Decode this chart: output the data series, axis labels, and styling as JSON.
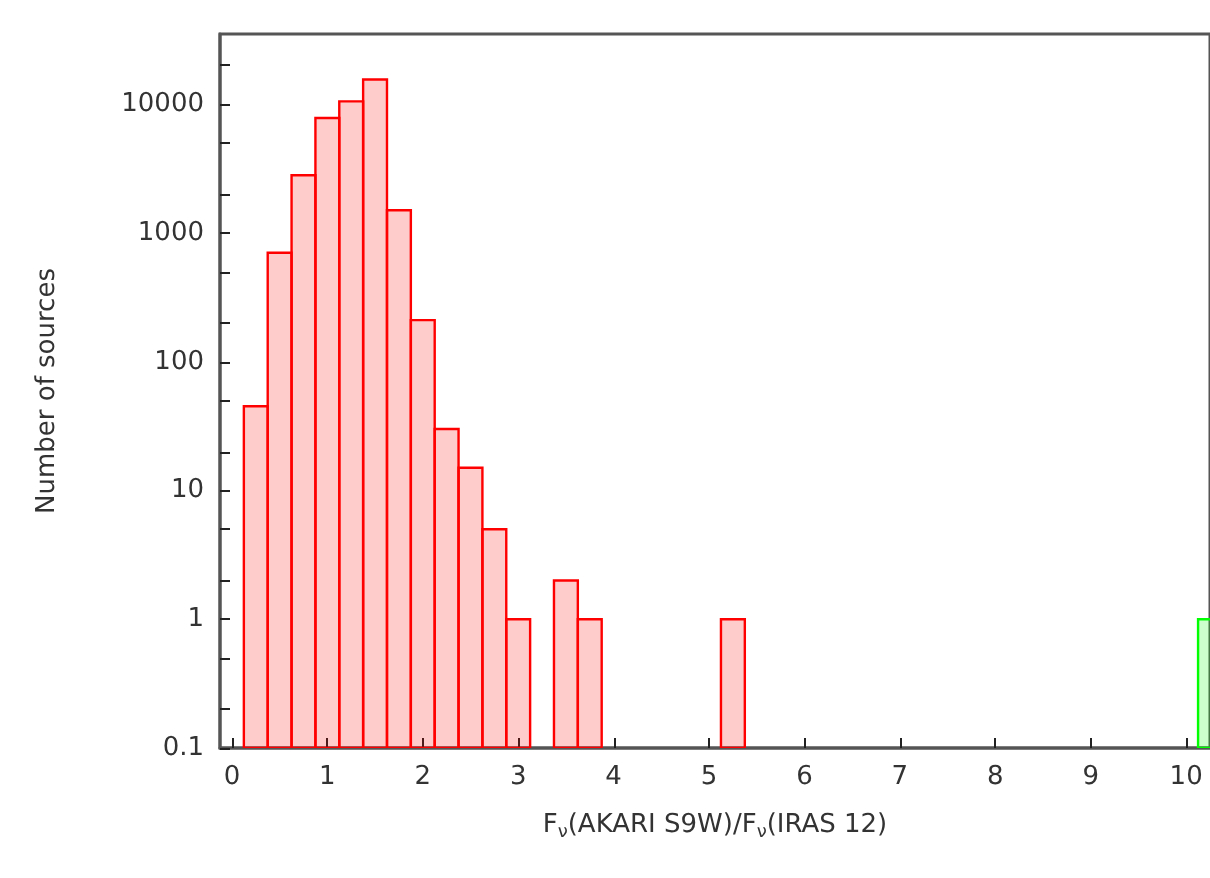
{
  "chart_data": {
    "type": "histogram",
    "xlabel": "F$_{ν}$(AKARI S9W)/F$_{ν}$(IRAS 12)",
    "ylabel": "Number of sources",
    "log": "y",
    "grid": false,
    "bins": [
      0.125,
      0.375,
      0.625,
      0.875,
      1.125,
      1.375,
      1.625,
      1.875,
      2.125,
      2.375,
      2.625,
      2.875,
      3.125,
      3.375,
      3.625,
      3.875,
      4.125,
      4.375,
      4.625,
      4.875,
      5.125,
      5.375,
      5.625,
      5.875,
      6.125,
      6.375,
      6.625,
      6.875,
      7.125,
      7.375,
      7.625,
      7.875,
      8.125,
      8.375,
      8.625,
      8.875,
      9.125,
      9.375,
      9.625,
      9.875,
      10.125,
      10.375
    ],
    "values": [
      45,
      700,
      2800,
      7800,
      10500,
      15500,
      1500,
      210,
      30,
      15,
      5,
      1,
      null,
      2,
      1,
      null,
      null,
      null,
      null,
      null,
      1,
      null,
      null,
      null,
      null,
      null,
      null,
      null,
      null,
      null,
      null,
      null,
      null,
      null,
      null,
      null,
      null,
      null,
      null,
      null,
      1
    ],
    "colors": [
      "#ff0000",
      "#ff0000",
      "#ff0000",
      "#ff0000",
      "#ff0000",
      "#ff0000",
      "#ff0000",
      "#ff0000",
      "#ff0000",
      "#ff0000",
      "#ff0000",
      "#ff0000",
      "#ff0000",
      "#ff0000",
      "#ff0000",
      "#ff0000",
      "#ff0000",
      "#ff0000",
      "#ff0000",
      "#ff0000",
      "#ff0000",
      "#ff0000",
      "#ff0000",
      "#ff0000",
      "#ff0000",
      "#ff0000",
      "#ff0000",
      "#ff0000",
      "#ff0000",
      "#ff0000",
      "#ff0000",
      "#ff0000",
      "#ff0000",
      "#ff0000",
      "#ff0000",
      "#ff0000",
      "#ff0000",
      "#ff0000",
      "#ff0000",
      "#ff0000",
      "#00ff00"
    ],
    "xlim": [
      -0.125,
      10.25
    ],
    "xticks": [
      0,
      1,
      2,
      3,
      4,
      5,
      6,
      7,
      8,
      9,
      10
    ],
    "ylim": [
      0.1,
      35000
    ],
    "yticks": [
      0.1,
      {
        "value": 0.2,
        "label": null
      },
      {
        "value": 0.5,
        "label": null
      },
      1,
      {
        "value": 2,
        "label": null
      },
      {
        "value": 5,
        "label": null
      },
      10,
      {
        "value": 20,
        "label": null
      },
      {
        "value": 50,
        "label": null
      },
      100,
      {
        "value": 200,
        "label": null
      },
      {
        "value": 500,
        "label": null
      },
      1000,
      {
        "value": 2000,
        "label": null
      },
      {
        "value": 5000,
        "label": null
      },
      10000,
      {
        "value": 20000,
        "label": null
      }
    ]
  }
}
